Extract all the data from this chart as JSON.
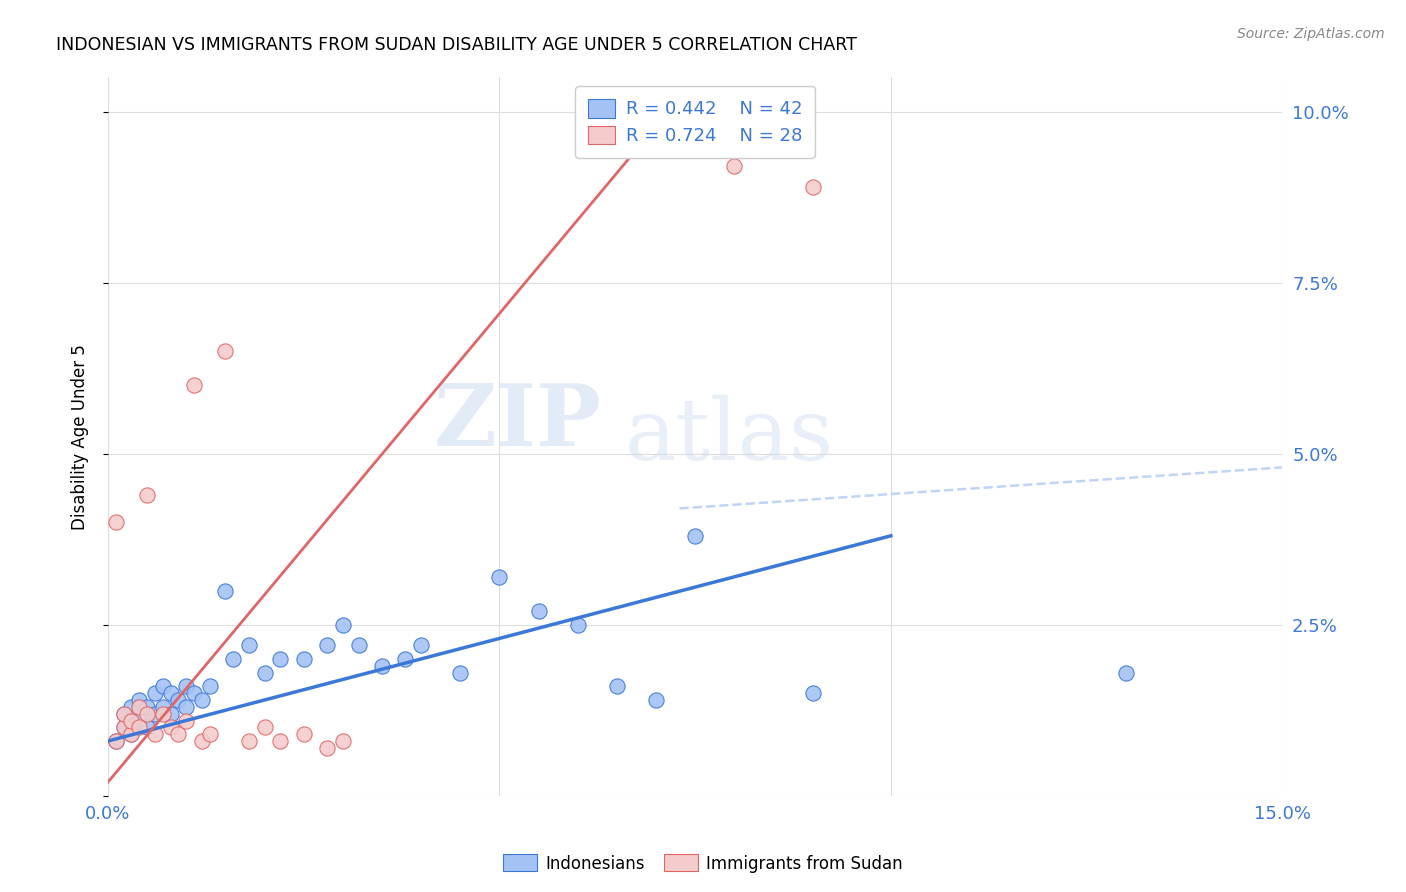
{
  "title": "INDONESIAN VS IMMIGRANTS FROM SUDAN DISABILITY AGE UNDER 5 CORRELATION CHART",
  "source": "Source: ZipAtlas.com",
  "ylabel": "Disability Age Under 5",
  "xmin": 0.0,
  "xmax": 0.15,
  "ymin": 0.0,
  "ymax": 0.105,
  "blue_color": "#a4c2f4",
  "pink_color": "#f4cccc",
  "blue_line_color": "#3c78d8",
  "pink_line_color": "#e06666",
  "dashed_line_color": "#a4c2f4",
  "legend_r1": "R = 0.442",
  "legend_n1": "N = 42",
  "legend_r2": "R = 0.724",
  "legend_n2": "N = 28",
  "legend1_label": "Indonesians",
  "legend2_label": "Immigrants from Sudan",
  "blue_scatter_x": [
    0.001,
    0.002,
    0.002,
    0.003,
    0.003,
    0.004,
    0.004,
    0.005,
    0.005,
    0.006,
    0.006,
    0.007,
    0.007,
    0.008,
    0.008,
    0.009,
    0.01,
    0.01,
    0.011,
    0.012,
    0.013,
    0.015,
    0.016,
    0.018,
    0.02,
    0.022,
    0.025,
    0.028,
    0.03,
    0.032,
    0.035,
    0.038,
    0.04,
    0.045,
    0.05,
    0.055,
    0.06,
    0.065,
    0.07,
    0.075,
    0.09,
    0.13
  ],
  "blue_scatter_y": [
    0.008,
    0.01,
    0.012,
    0.009,
    0.013,
    0.011,
    0.014,
    0.01,
    0.013,
    0.012,
    0.015,
    0.013,
    0.016,
    0.012,
    0.015,
    0.014,
    0.013,
    0.016,
    0.015,
    0.014,
    0.016,
    0.03,
    0.02,
    0.022,
    0.018,
    0.02,
    0.02,
    0.022,
    0.025,
    0.022,
    0.019,
    0.02,
    0.022,
    0.018,
    0.032,
    0.027,
    0.025,
    0.016,
    0.014,
    0.038,
    0.015,
    0.018
  ],
  "pink_scatter_x": [
    0.001,
    0.001,
    0.002,
    0.002,
    0.003,
    0.003,
    0.004,
    0.004,
    0.005,
    0.005,
    0.006,
    0.007,
    0.008,
    0.009,
    0.01,
    0.011,
    0.012,
    0.013,
    0.015,
    0.018,
    0.02,
    0.022,
    0.025,
    0.028,
    0.03,
    0.07,
    0.08,
    0.09
  ],
  "pink_scatter_y": [
    0.008,
    0.04,
    0.01,
    0.012,
    0.009,
    0.011,
    0.013,
    0.01,
    0.012,
    0.044,
    0.009,
    0.012,
    0.01,
    0.009,
    0.011,
    0.06,
    0.008,
    0.009,
    0.065,
    0.008,
    0.01,
    0.008,
    0.009,
    0.007,
    0.008,
    0.096,
    0.092,
    0.089
  ],
  "blue_trend_x": [
    0.0,
    0.1
  ],
  "blue_trend_y": [
    0.008,
    0.038
  ],
  "pink_trend_x": [
    0.0,
    0.073
  ],
  "pink_trend_y": [
    0.002,
    0.102
  ],
  "dashed_trend_x": [
    0.073,
    0.15
  ],
  "dashed_trend_y": [
    0.042,
    0.048
  ],
  "watermark_zip": "ZIP",
  "watermark_atlas": "atlas",
  "background_color": "#ffffff",
  "grid_color": "#dddddd"
}
